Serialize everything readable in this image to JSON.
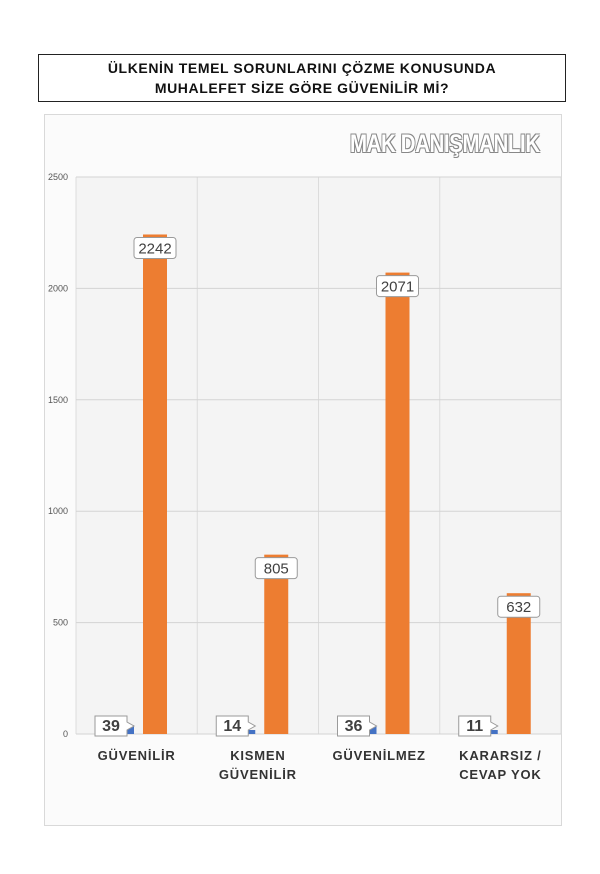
{
  "title": {
    "line1": "ÜLKENİN TEMEL SORUNLARINI ÇÖZME KONUSUNDA",
    "line2": "MUHALEFET SİZE GÖRE GÜVENİLİR Mİ?"
  },
  "watermark": "MAK DANIŞMANLIK",
  "chart_data": {
    "type": "bar",
    "categories": [
      [
        "GÜVENİLİR"
      ],
      [
        "KISMEN",
        "GÜVENİLİR"
      ],
      [
        "GÜVENİLMEZ"
      ],
      [
        "KARARSIZ /",
        "CEVAP YOK"
      ]
    ],
    "series": [
      {
        "values": [
          39,
          14,
          36,
          11
        ],
        "color": "#4472c4"
      },
      {
        "values": [
          2242,
          805,
          2071,
          632
        ],
        "color": "#ed7d31"
      }
    ],
    "ylim": [
      0,
      2500
    ],
    "yticks": [
      0,
      500,
      1000,
      1500,
      2000,
      2500
    ],
    "grid": true
  }
}
